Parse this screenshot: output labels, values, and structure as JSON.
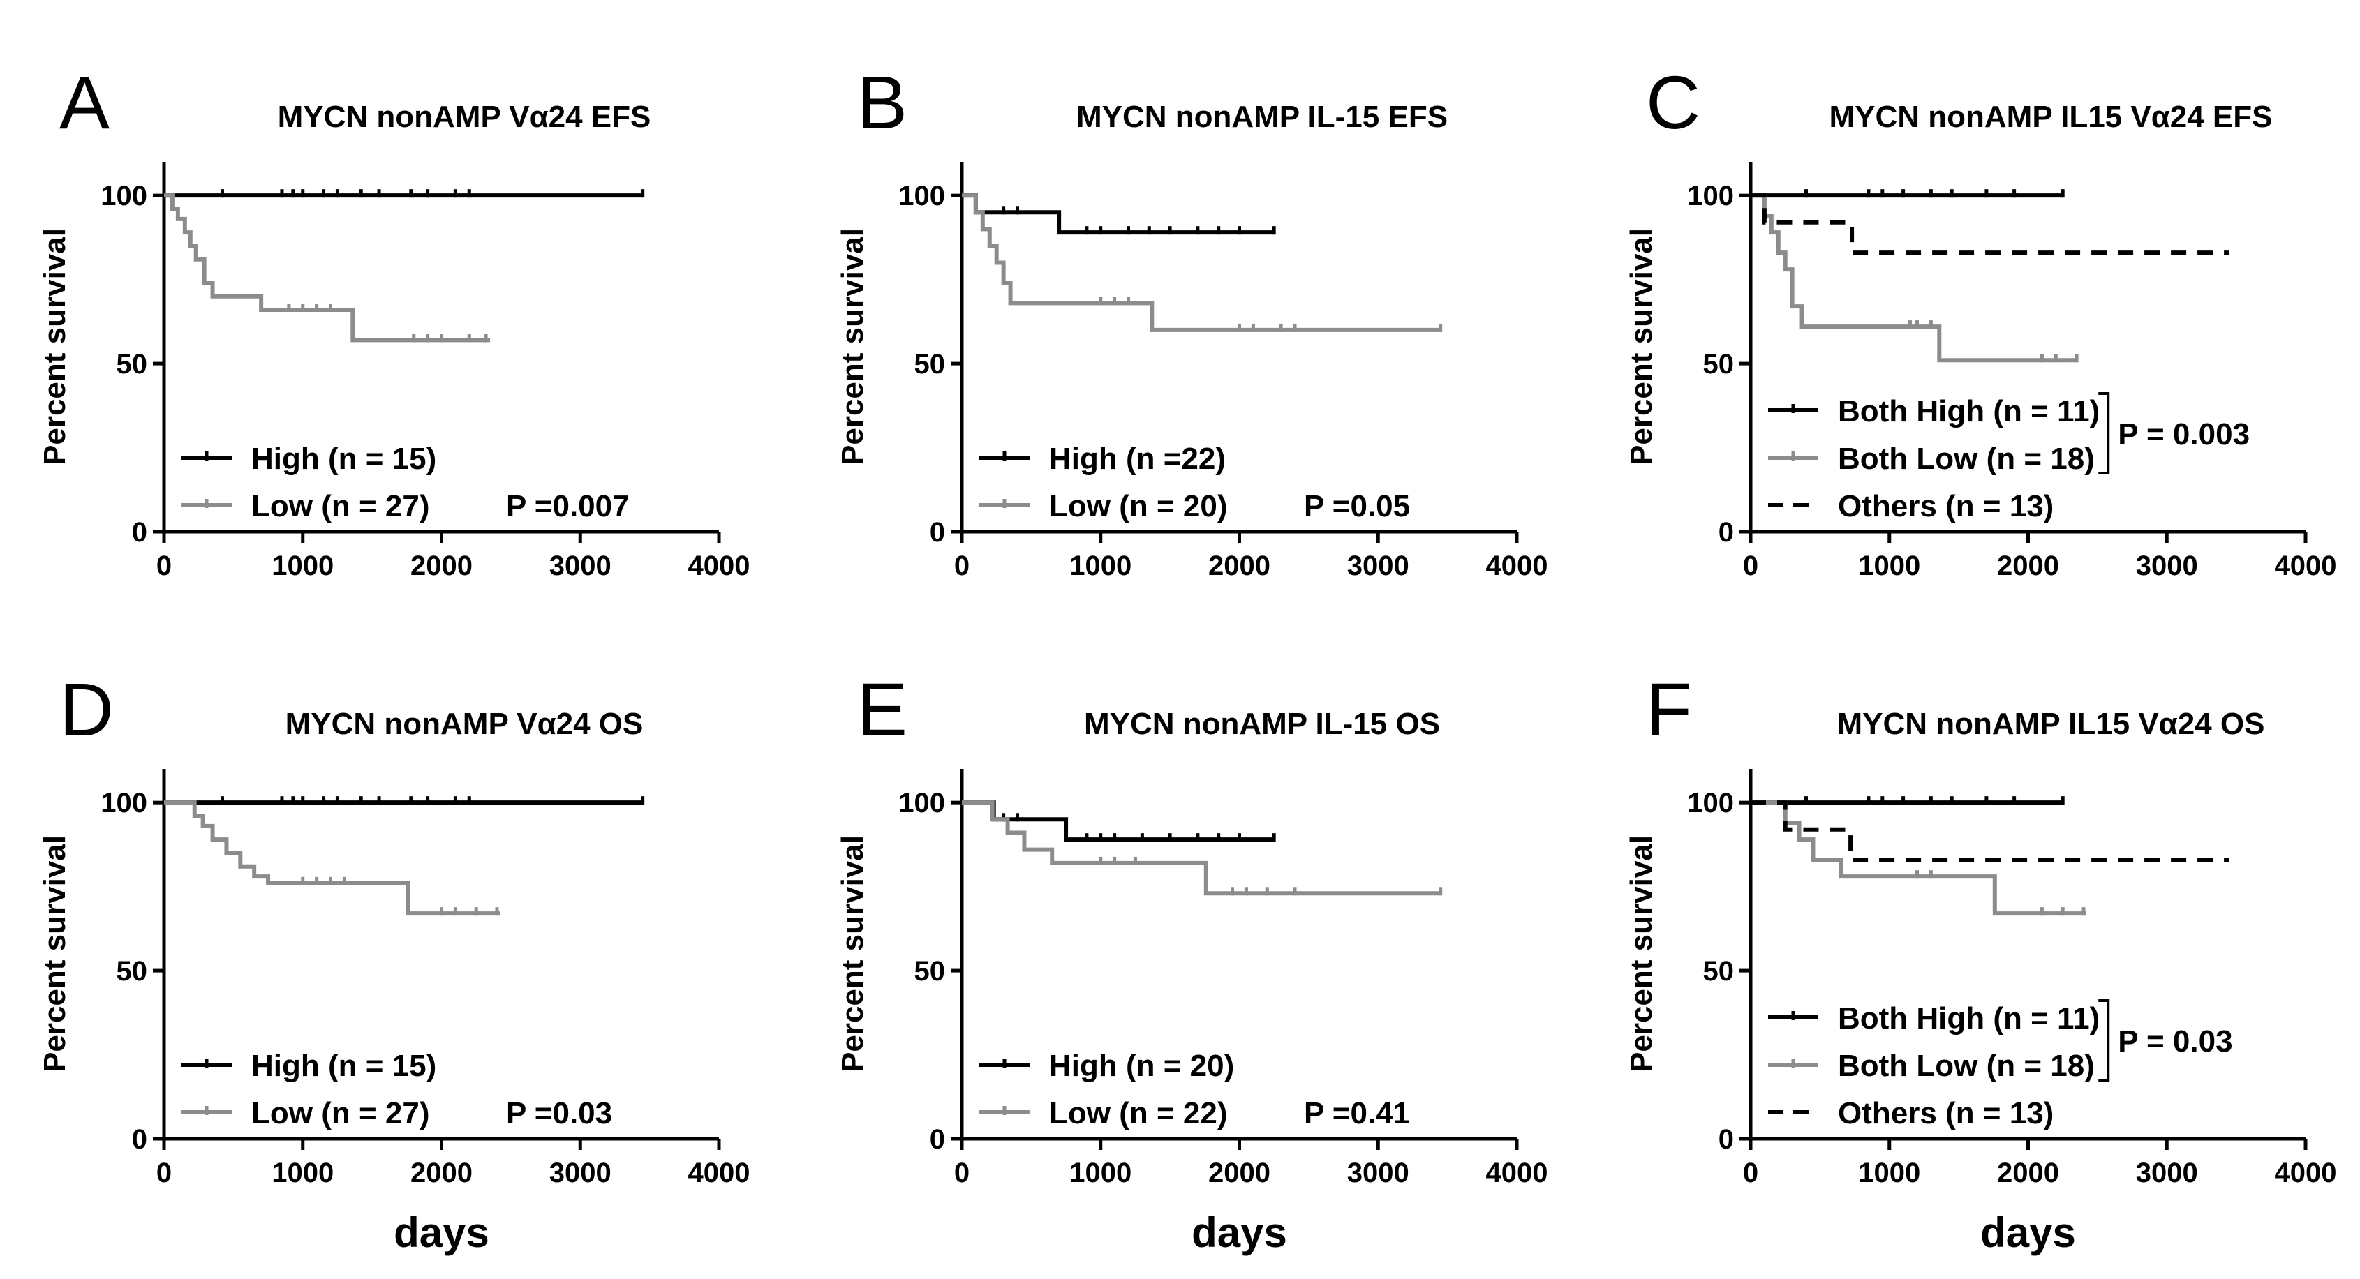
{
  "colors": {
    "high": "#000000",
    "low": "#8c8c8c",
    "others": "#000000",
    "axis": "#000000"
  },
  "chart_data": [
    {
      "id": "A",
      "letter": "A",
      "type": "line",
      "title": "MYCN nonAMP  Vα24 EFS",
      "ylabel": "Percent survival",
      "xlabel": "",
      "xlim": [
        0,
        4000
      ],
      "ylim": [
        0,
        110
      ],
      "xticks": [
        "0",
        "1000",
        "2000",
        "3000",
        "4000"
      ],
      "yticks": [
        "0",
        "50",
        "100"
      ],
      "series": [
        {
          "name": "High (n = 15)",
          "color": "high",
          "dash": false,
          "x": [
            0,
            3450
          ],
          "y": [
            100,
            100
          ],
          "censor": [
            420,
            850,
            930,
            1000,
            1150,
            1250,
            1420,
            1550,
            1780,
            1900,
            2100,
            2200,
            3450
          ]
        },
        {
          "name": "Low (n = 27)",
          "color": "low",
          "dash": false,
          "x": [
            0,
            60,
            100,
            150,
            190,
            230,
            290,
            350,
            700,
            1360,
            2350
          ],
          "y": [
            100,
            96,
            93,
            89,
            85,
            81,
            74,
            70,
            66,
            57,
            57
          ],
          "censor": [
            900,
            1000,
            1100,
            1200,
            1800,
            1900,
            2000,
            2200,
            2320
          ]
        }
      ],
      "bracket": null,
      "pvalue": "P =0.007"
    },
    {
      "id": "B",
      "letter": "B",
      "type": "line",
      "title": "MYCN nonAMP  IL-15 EFS",
      "ylabel": "Percent survival",
      "xlabel": "",
      "xlim": [
        0,
        4000
      ],
      "ylim": [
        0,
        110
      ],
      "xticks": [
        "0",
        "1000",
        "2000",
        "3000",
        "4000"
      ],
      "yticks": [
        "0",
        "50",
        "100"
      ],
      "series": [
        {
          "name": "High (n =22)",
          "color": "high",
          "dash": false,
          "x": [
            0,
            100,
            700,
            2250
          ],
          "y": [
            100,
            95,
            89,
            89
          ],
          "censor": [
            300,
            400,
            900,
            1000,
            1200,
            1350,
            1500,
            1700,
            1850,
            2000,
            2250
          ]
        },
        {
          "name": "Low (n = 20)",
          "color": "low",
          "dash": false,
          "x": [
            0,
            100,
            150,
            200,
            250,
            300,
            350,
            1370,
            3450
          ],
          "y": [
            100,
            95,
            90,
            85,
            80,
            74,
            68,
            60,
            60
          ],
          "censor": [
            1000,
            1100,
            1200,
            2000,
            2100,
            2300,
            2400,
            3450
          ]
        }
      ],
      "bracket": null,
      "pvalue": "P =0.05"
    },
    {
      "id": "C",
      "letter": "C",
      "type": "line",
      "title": "MYCN nonAMP  IL15 Vα24 EFS",
      "ylabel": "Percent survival",
      "xlabel": "",
      "xlim": [
        0,
        4000
      ],
      "ylim": [
        0,
        110
      ],
      "xticks": [
        "0",
        "1000",
        "2000",
        "3000",
        "4000"
      ],
      "yticks": [
        "0",
        "50",
        "100"
      ],
      "series": [
        {
          "name": "Both High (n = 11)",
          "color": "high",
          "dash": false,
          "x": [
            0,
            2250
          ],
          "y": [
            100,
            100
          ],
          "censor": [
            400,
            850,
            950,
            1100,
            1300,
            1450,
            1700,
            1900,
            2250
          ]
        },
        {
          "name": "Both  Low (n = 18)",
          "color": "low",
          "dash": false,
          "x": [
            0,
            100,
            150,
            200,
            250,
            300,
            370,
            1360,
            2350
          ],
          "y": [
            100,
            94,
            89,
            83,
            78,
            67,
            61,
            51,
            51
          ],
          "censor": [
            1150,
            1200,
            1300,
            2100,
            2200,
            2350
          ]
        },
        {
          "name": "Others (n = 13)",
          "color": "others",
          "dash": true,
          "x": [
            0,
            100,
            730,
            3450
          ],
          "y": [
            100,
            92,
            83,
            83
          ],
          "censor": []
        }
      ],
      "bracket": {
        "text": "P = 0.003"
      },
      "pvalue": ""
    },
    {
      "id": "D",
      "letter": "D",
      "type": "line",
      "title": "MYCN nonAMP Vα24 OS",
      "ylabel": "Percent survival",
      "xlabel": "days",
      "xlim": [
        0,
        4000
      ],
      "ylim": [
        0,
        110
      ],
      "xticks": [
        "0",
        "1000",
        "2000",
        "3000",
        "4000"
      ],
      "yticks": [
        "0",
        "50",
        "100"
      ],
      "series": [
        {
          "name": "High (n = 15)",
          "color": "high",
          "dash": false,
          "x": [
            0,
            3450
          ],
          "y": [
            100,
            100
          ],
          "censor": [
            420,
            850,
            930,
            1000,
            1150,
            1250,
            1420,
            1550,
            1780,
            1900,
            2100,
            2200,
            3450
          ]
        },
        {
          "name": "Low (n = 27)",
          "color": "low",
          "dash": false,
          "x": [
            0,
            220,
            280,
            350,
            450,
            550,
            650,
            750,
            1760,
            2420
          ],
          "y": [
            100,
            96,
            93,
            89,
            85,
            81,
            78,
            76,
            67,
            67
          ],
          "censor": [
            1000,
            1100,
            1200,
            1300,
            2000,
            2100,
            2250,
            2400
          ]
        }
      ],
      "bracket": null,
      "pvalue": "P =0.03"
    },
    {
      "id": "E",
      "letter": "E",
      "type": "line",
      "title": "MYCN nonAMP  IL-15 OS",
      "ylabel": "Percent survival",
      "xlabel": "days",
      "xlim": [
        0,
        4000
      ],
      "ylim": [
        0,
        110
      ],
      "xticks": [
        "0",
        "1000",
        "2000",
        "3000",
        "4000"
      ],
      "yticks": [
        "0",
        "50",
        "100"
      ],
      "series": [
        {
          "name": "High (n = 20)",
          "color": "high",
          "dash": false,
          "x": [
            0,
            230,
            750,
            2250
          ],
          "y": [
            100,
            95,
            89,
            89
          ],
          "censor": [
            300,
            400,
            900,
            1000,
            1100,
            1300,
            1500,
            1700,
            1850,
            2000,
            2250
          ]
        },
        {
          "name": "Low (n = 22)",
          "color": "low",
          "dash": false,
          "x": [
            0,
            220,
            330,
            450,
            650,
            1760,
            3450
          ],
          "y": [
            100,
            95,
            91,
            86,
            82,
            73,
            73
          ],
          "censor": [
            1000,
            1100,
            1250,
            1950,
            2050,
            2200,
            2400,
            3450
          ]
        }
      ],
      "bracket": null,
      "pvalue": "P =0.41"
    },
    {
      "id": "F",
      "letter": "F",
      "type": "line",
      "title": "MYCN nonAMP  IL15 Vα24 OS",
      "ylabel": "Percent survival",
      "xlabel": "days",
      "xlim": [
        0,
        4000
      ],
      "ylim": [
        0,
        110
      ],
      "xticks": [
        "0",
        "1000",
        "2000",
        "3000",
        "4000"
      ],
      "yticks": [
        "0",
        "50",
        "100"
      ],
      "series": [
        {
          "name": "Both High (n = 11)",
          "color": "high",
          "dash": false,
          "x": [
            0,
            2250
          ],
          "y": [
            100,
            100
          ],
          "censor": [
            400,
            850,
            950,
            1100,
            1300,
            1450,
            1700,
            1900,
            2250
          ]
        },
        {
          "name": "Both Low (n = 18)",
          "color": "low",
          "dash": false,
          "x": [
            0,
            250,
            350,
            450,
            650,
            1760,
            2420
          ],
          "y": [
            100,
            94,
            89,
            83,
            78,
            67,
            67
          ],
          "censor": [
            1200,
            1300,
            2100,
            2250,
            2400
          ]
        },
        {
          "name": "Others (n = 13)",
          "color": "others",
          "dash": true,
          "x": [
            0,
            250,
            720,
            3450
          ],
          "y": [
            100,
            92,
            83,
            83
          ],
          "censor": []
        }
      ],
      "bracket": {
        "text": "P = 0.03"
      },
      "pvalue": ""
    }
  ]
}
